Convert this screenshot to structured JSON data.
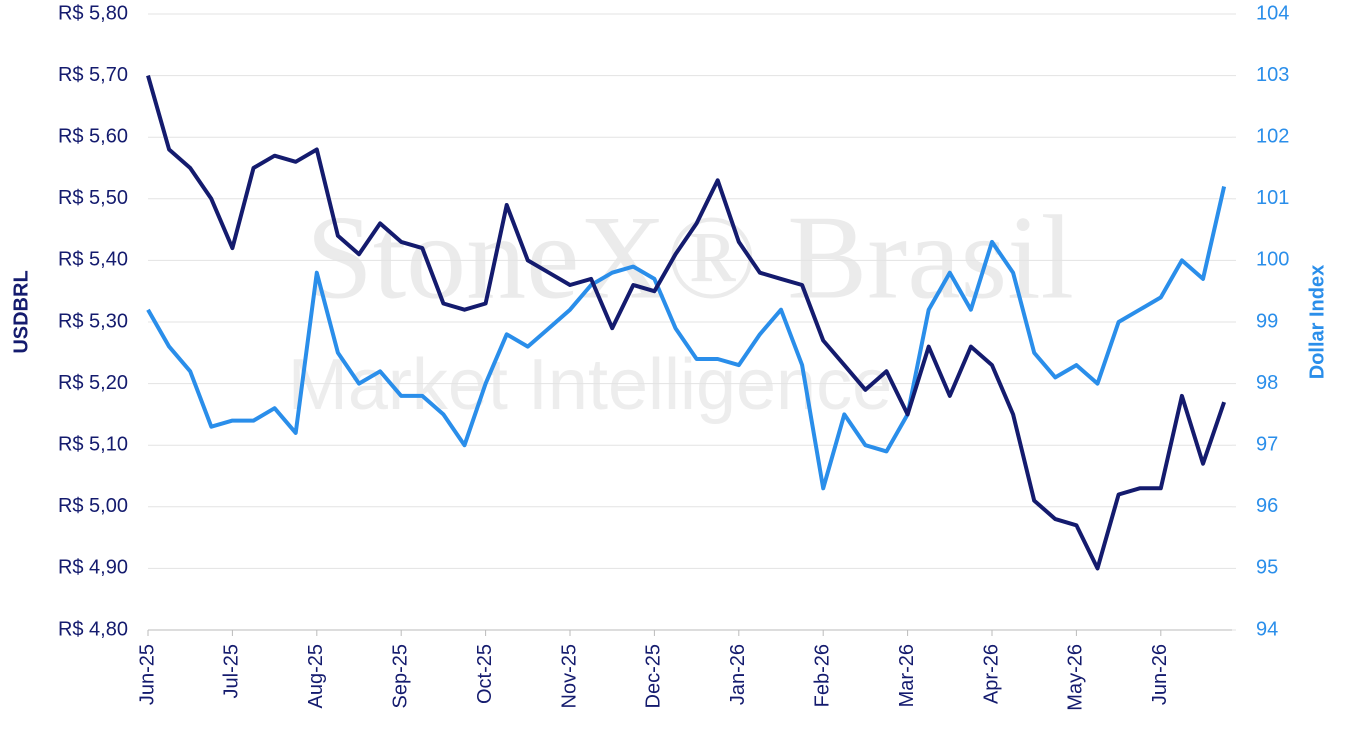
{
  "chart_data": {
    "type": "line",
    "watermark": [
      "StoneX® Brasil",
      "Market Intelligence"
    ],
    "y_label": "USDBRL",
    "y2_label": "Dollar Index",
    "categories": [
      "Jun-25",
      null,
      null,
      null,
      "Jul-25",
      null,
      null,
      null,
      "Aug-25",
      null,
      null,
      null,
      "Sep-25",
      null,
      null,
      null,
      "Oct-25",
      null,
      null,
      null,
      "Nov-25",
      null,
      null,
      null,
      "Dec-25",
      null,
      null,
      null,
      "Jan-26",
      null,
      null,
      null,
      "Feb-26",
      null,
      null,
      null,
      "Mar-26",
      null,
      null,
      null,
      "Apr-26",
      null,
      null,
      null,
      "May-26",
      null,
      null,
      null,
      "Jun-26",
      null,
      null,
      null
    ],
    "series": [
      {
        "name": "USDBRL",
        "color": "#141b6e",
        "axis": "y",
        "values": [
          5.7,
          5.58,
          5.55,
          5.5,
          5.42,
          5.55,
          5.57,
          5.56,
          5.58,
          5.44,
          5.41,
          5.46,
          5.43,
          5.42,
          5.33,
          5.32,
          5.33,
          5.49,
          5.4,
          5.38,
          5.36,
          5.37,
          5.29,
          5.36,
          5.35,
          5.41,
          5.46,
          5.53,
          5.43,
          5.38,
          5.37,
          5.36,
          5.27,
          5.23,
          5.19,
          5.22,
          5.15,
          5.26,
          5.18,
          5.26,
          5.23,
          5.15,
          5.01,
          4.98,
          4.97,
          4.9,
          5.02,
          5.03,
          5.03,
          5.18,
          5.07,
          5.17
        ]
      },
      {
        "name": "Dollar Index",
        "color": "#2a8eea",
        "axis": "y2",
        "values": [
          99.2,
          98.6,
          98.2,
          97.3,
          97.4,
          97.4,
          97.6,
          97.2,
          99.8,
          98.5,
          98.0,
          98.2,
          97.8,
          97.8,
          97.5,
          97.0,
          98.0,
          98.8,
          98.6,
          98.9,
          99.2,
          99.6,
          99.8,
          99.9,
          99.7,
          98.9,
          98.4,
          98.4,
          98.3,
          98.8,
          99.2,
          98.3,
          96.3,
          97.5,
          97.0,
          96.9,
          97.5,
          99.2,
          99.8,
          99.2,
          100.3,
          99.8,
          98.5,
          98.1,
          98.3,
          98.0,
          99.0,
          99.2,
          99.4,
          100.0,
          99.7,
          101.2
        ]
      }
    ],
    "ylim": [
      4.8,
      5.8
    ],
    "yticks": [
      {
        "value": 4.8,
        "label": "R$ 4,80"
      },
      {
        "value": 4.9,
        "label": "R$ 4,90"
      },
      {
        "value": 5.0,
        "label": "R$ 5,00"
      },
      {
        "value": 5.1,
        "label": "R$ 5,10"
      },
      {
        "value": 5.2,
        "label": "R$ 5,20"
      },
      {
        "value": 5.3,
        "label": "R$ 5,30"
      },
      {
        "value": 5.4,
        "label": "R$ 5,40"
      },
      {
        "value": 5.5,
        "label": "R$ 5,50"
      },
      {
        "value": 5.6,
        "label": "R$ 5,60"
      },
      {
        "value": 5.7,
        "label": "R$ 5,70"
      },
      {
        "value": 5.8,
        "label": "R$ 5,80"
      }
    ],
    "y2lim": [
      94,
      104
    ],
    "y2ticks": [
      94,
      95,
      96,
      97,
      98,
      99,
      100,
      101,
      102,
      103,
      104
    ],
    "grid": true
  }
}
